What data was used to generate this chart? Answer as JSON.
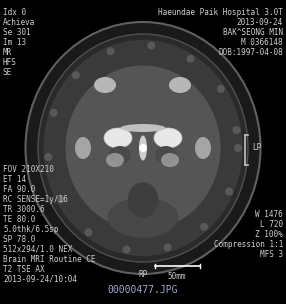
{
  "background_color": "#000000",
  "text_color": "#d0d0d0",
  "filename_color": "#a0a8d0",
  "top_left_lines": [
    "Idx 0",
    "Achieva",
    "Se 301",
    "Im 13",
    "MR",
    "HFS",
    "SE"
  ],
  "top_right_lines": [
    "Haeundae Paik Hospital 3.0T",
    "2013-09-24",
    "BAK^SEONG MIN",
    "M 0366148",
    "DOB:1997-04-08"
  ],
  "bottom_left_lines": [
    "FOV 210X210",
    "ET 14",
    "FA 90.0",
    "RC SENSE=1y/16",
    "TR 3000.6",
    "TE 80.0",
    "5.0thk/6.5sp",
    "SP 78.0",
    "512x294/1.0 NEX",
    "Brain MRI Routine CE",
    "T2 TSE AX",
    "2013-09-24/10:04"
  ],
  "bottom_right_lines": [
    "W 1476",
    "L 720",
    "Z 100%",
    "Compression 1:1",
    "MFS 3"
  ],
  "label_LP": "LP",
  "label_RP": "RP",
  "scale_label": "50mm",
  "filename": "00000477.JPG",
  "figsize": [
    2.86,
    3.04
  ],
  "dpi": 100
}
